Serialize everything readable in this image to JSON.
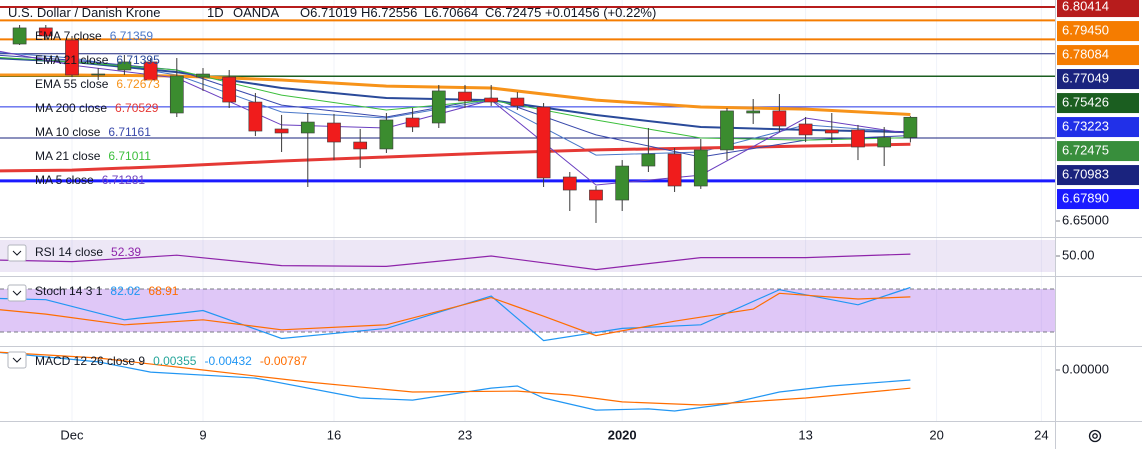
{
  "chart_data": [
    {
      "type": "candlestick",
      "title": "U.S. Dollar / Danish Krone",
      "interval": "1D",
      "source": "OANDA",
      "ohlc_labels": [
        "O6.71019",
        "H6.72556",
        "L6.70664",
        "C6.72475"
      ],
      "change": "+0.01456 (+0.22%)",
      "x": [
        -2,
        -1,
        0,
        1,
        2,
        3,
        4,
        5,
        6,
        7,
        8,
        9,
        10,
        11,
        12,
        13,
        14,
        15,
        16,
        17,
        18,
        19,
        20,
        21,
        22,
        23,
        24,
        25,
        26,
        27,
        28,
        29,
        30,
        31,
        32
      ],
      "open": [
        6.7775,
        6.7891,
        6.7804,
        6.7552,
        6.7588,
        6.7646,
        6.7278,
        6.7537,
        6.7537,
        6.7357,
        6.7163,
        6.7134,
        6.7206,
        6.7069,
        6.7019,
        6.7242,
        6.7206,
        6.7429,
        6.7386,
        6.7386,
        6.7321,
        6.6817,
        6.6723,
        6.6651,
        6.6896,
        6.6983,
        6.6752,
        6.7012,
        6.7278,
        6.7293,
        6.7199,
        6.7156,
        6.7156,
        6.7033,
        6.71019
      ],
      "high": [
        6.7912,
        6.7912,
        6.7833,
        6.7602,
        6.7696,
        6.7674,
        6.7674,
        6.7602,
        6.7588,
        6.7422,
        6.7264,
        6.7278,
        6.7271,
        6.7163,
        6.7278,
        6.7314,
        6.748,
        6.748,
        6.748,
        6.7429,
        6.735,
        6.6853,
        6.6752,
        6.6939,
        6.717,
        6.7026,
        6.7091,
        6.7314,
        6.7379,
        6.7415,
        6.7249,
        6.7278,
        6.7192,
        6.7177,
        6.72556
      ],
      "low": [
        6.7768,
        6.7804,
        6.7537,
        6.7516,
        6.7552,
        6.7516,
        6.7249,
        6.7437,
        6.7314,
        6.7112,
        6.6997,
        6.6745,
        6.6939,
        6.6882,
        6.699,
        6.7141,
        6.717,
        6.7314,
        6.7329,
        6.73,
        6.6745,
        6.6572,
        6.6486,
        6.6572,
        6.6853,
        6.6709,
        6.6731,
        6.6939,
        6.7199,
        6.7141,
        6.7069,
        6.7062,
        6.6939,
        6.6896,
        6.70664
      ],
      "close": [
        6.7891,
        6.7833,
        6.7552,
        6.7559,
        6.7646,
        6.7516,
        6.7545,
        6.7559,
        6.7357,
        6.7148,
        6.7134,
        6.7213,
        6.7069,
        6.7019,
        6.7228,
        6.7177,
        6.7437,
        6.7365,
        6.7357,
        6.7329,
        6.681,
        6.6723,
        6.6651,
        6.6896,
        6.6983,
        6.6752,
        6.7012,
        6.7293,
        6.7293,
        6.7184,
        6.712,
        6.7134,
        6.7033,
        6.7102,
        6.72475
      ],
      "up_color": "#3b8c2f",
      "down_color": "#f01c1c",
      "wick_color": "#3a3a3a",
      "xlim": [
        -2.748,
        37.52
      ],
      "ylim": [
        6.63847,
        6.80922
      ],
      "yticks": [
        {
          "value": 6.65,
          "label": "6.65000"
        }
      ],
      "xticks": [
        {
          "value": 0,
          "label": "Dec"
        },
        {
          "value": 5,
          "label": "9"
        },
        {
          "value": 10,
          "label": "16"
        },
        {
          "value": 15,
          "label": "23"
        },
        {
          "value": 21,
          "label": "2020",
          "bold": true
        },
        {
          "value": 28,
          "label": "13"
        },
        {
          "value": 33,
          "label": "20"
        },
        {
          "value": 37,
          "label": "24"
        }
      ],
      "grid": true,
      "overlays": [
        {
          "name": "EMA 7 close",
          "color": "#4a78c9",
          "line_width": 1,
          "x": [
            -3,
            0,
            4,
            8,
            12,
            16,
            20,
            24,
            28,
            32
          ],
          "values": [
            6.7717,
            6.7674,
            6.7552,
            6.7285,
            6.7242,
            6.7371,
            6.6975,
            6.6997,
            6.7192,
            6.71359
          ]
        },
        {
          "name": "EMA 21 close",
          "color": "#2a4a9a",
          "line_width": 2,
          "x": [
            -3,
            0,
            4,
            8,
            12,
            16,
            20,
            24,
            28,
            32
          ],
          "values": [
            6.7674,
            6.7646,
            6.7573,
            6.7458,
            6.7386,
            6.7371,
            6.7264,
            6.7177,
            6.7156,
            6.71395
          ]
        },
        {
          "name": "EMA 55 close",
          "color": "#f7931a",
          "line_width": 3,
          "x": [
            -3,
            0,
            4,
            8,
            12,
            16,
            20,
            24,
            28,
            32
          ],
          "values": [
            6.7552,
            6.7552,
            6.7545,
            6.7516,
            6.7472,
            6.7458,
            6.7371,
            6.7321,
            6.7306,
            6.72673
          ]
        },
        {
          "name": "MA 200 close",
          "color": "#e53935",
          "line_width": 3,
          "x": [
            -3,
            0,
            4,
            8,
            12,
            16,
            20,
            24,
            28,
            32
          ],
          "values": [
            6.686,
            6.6867,
            6.6896,
            6.6932,
            6.6961,
            6.699,
            6.7012,
            6.7026,
            6.704,
            6.70529
          ]
        },
        {
          "name": "MA 10 close",
          "color": "#3949ab",
          "line_width": 1,
          "x": [
            -3,
            0,
            4,
            8,
            12,
            16,
            20,
            24,
            28,
            32
          ],
          "values": [
            6.7696,
            6.7659,
            6.7588,
            6.7335,
            6.7249,
            6.7386,
            6.712,
            6.6961,
            6.7083,
            6.71161
          ]
        },
        {
          "name": "MA 21 close",
          "color": "#3cbf3c",
          "line_width": 1,
          "x": [
            -3,
            0,
            4,
            8,
            12,
            16,
            20,
            24,
            28,
            32
          ],
          "values": [
            6.7681,
            6.7646,
            6.7588,
            6.7407,
            6.73,
            6.7371,
            6.7228,
            6.7098,
            6.7083,
            6.71011
          ]
        },
        {
          "name": "MA 5 close",
          "color": "#6a3fc0",
          "line_width": 1,
          "x": [
            -3,
            0,
            4,
            8,
            12,
            16,
            20,
            24,
            28,
            32
          ],
          "values": [
            6.7731,
            6.7623,
            6.753,
            6.7192,
            6.717,
            6.7371,
            6.6759,
            6.6831,
            6.7242,
            6.71281
          ]
        }
      ],
      "price_lines": [
        {
          "value": 6.80414,
          "label": "6.80414",
          "color": "#b71c1c",
          "width": 2
        },
        {
          "value": 6.7945,
          "label": "6.79450",
          "color": "#f57c00",
          "width": 2
        },
        {
          "value": 6.78084,
          "label": "6.78084",
          "color": "#f57c00",
          "width": 2
        },
        {
          "value": 6.77049,
          "label": "6.77049",
          "color": "#1a237e",
          "width": 1
        },
        {
          "value": 6.75426,
          "label": "6.75426",
          "color": "#1b5e20",
          "width": 1.5
        },
        {
          "value": 6.73223,
          "label": "6.73223",
          "color": "#2130e8",
          "width": 1
        },
        {
          "value": 6.72475,
          "label": "6.72475",
          "color": "#388e3c",
          "width": 0
        },
        {
          "value": 6.70983,
          "label": "6.70983",
          "color": "#1a237e",
          "width": 1
        },
        {
          "value": 6.6789,
          "label": "6.67890",
          "color": "#1a1aff",
          "width": 3
        }
      ]
    },
    {
      "type": "line",
      "label": "RSI 14 close",
      "ylim": [
        25,
        73.75
      ],
      "yticks": [
        {
          "value": 50,
          "label": "50.00"
        }
      ],
      "bands": [
        30,
        70
      ],
      "band_color": "rgba(126,87,194,0.14)",
      "band_dashed": false,
      "series": [
        {
          "color": "#8e24aa",
          "x": [
            -3,
            0,
            4,
            8,
            12,
            16,
            20,
            24,
            28,
            32
          ],
          "values": [
            45,
            43,
            51,
            38,
            37,
            50,
            33,
            48,
            48,
            52.39
          ]
        }
      ]
    },
    {
      "type": "line",
      "label": "Stoch 14 3 1",
      "ylim": [
        0.47,
        98.1
      ],
      "yticks": [],
      "bands": [
        20,
        80
      ],
      "band_color": "rgba(156,80,230,0.32)",
      "band_dashed": true,
      "series": [
        {
          "color": "#2196f3",
          "x": [
            -3,
            -1,
            2,
            5,
            8,
            12,
            16,
            18,
            21,
            24,
            27,
            30,
            32
          ],
          "values": [
            67,
            65,
            37,
            50,
            11,
            25,
            70,
            8,
            25,
            30,
            79,
            58,
            82.02
          ]
        },
        {
          "color": "#ff6d00",
          "x": [
            -3,
            -1,
            2,
            5,
            8,
            12,
            16,
            18,
            20,
            23,
            26,
            27,
            30,
            32
          ],
          "values": [
            52,
            45,
            30,
            37,
            23,
            30,
            68,
            42,
            15,
            35,
            52,
            74,
            66,
            68.91
          ]
        }
      ]
    },
    {
      "type": "line",
      "label": "MACD 12 26 close 9",
      "ylim": [
        -0.02203,
        0.01037
      ],
      "yticks": [
        {
          "value": 0,
          "label": "0.00000"
        }
      ],
      "histogram": {
        "color": "#26a69a",
        "value": 0.00355
      },
      "series": [
        {
          "color": "#2196f3",
          "x": [
            -3,
            1,
            3,
            7,
            11,
            13,
            16,
            17,
            18,
            20,
            22,
            23,
            25,
            27,
            29,
            32
          ],
          "values": [
            0.0078,
            0.0035,
            -0.0009,
            -0.0035,
            -0.0121,
            -0.013,
            -0.0078,
            -0.0069,
            -0.0121,
            -0.0173,
            -0.0168,
            -0.0177,
            -0.0147,
            -0.0095,
            -0.0069,
            -0.00432
          ]
        },
        {
          "color": "#ff6d00",
          "x": [
            -3,
            1,
            5,
            9,
            13,
            17,
            19,
            21,
            24,
            28,
            32
          ],
          "values": [
            0.0078,
            0.0052,
            0,
            -0.0052,
            -0.0095,
            -0.0091,
            -0.0108,
            -0.0138,
            -0.0151,
            -0.0121,
            -0.00787
          ]
        }
      ]
    }
  ]
}
